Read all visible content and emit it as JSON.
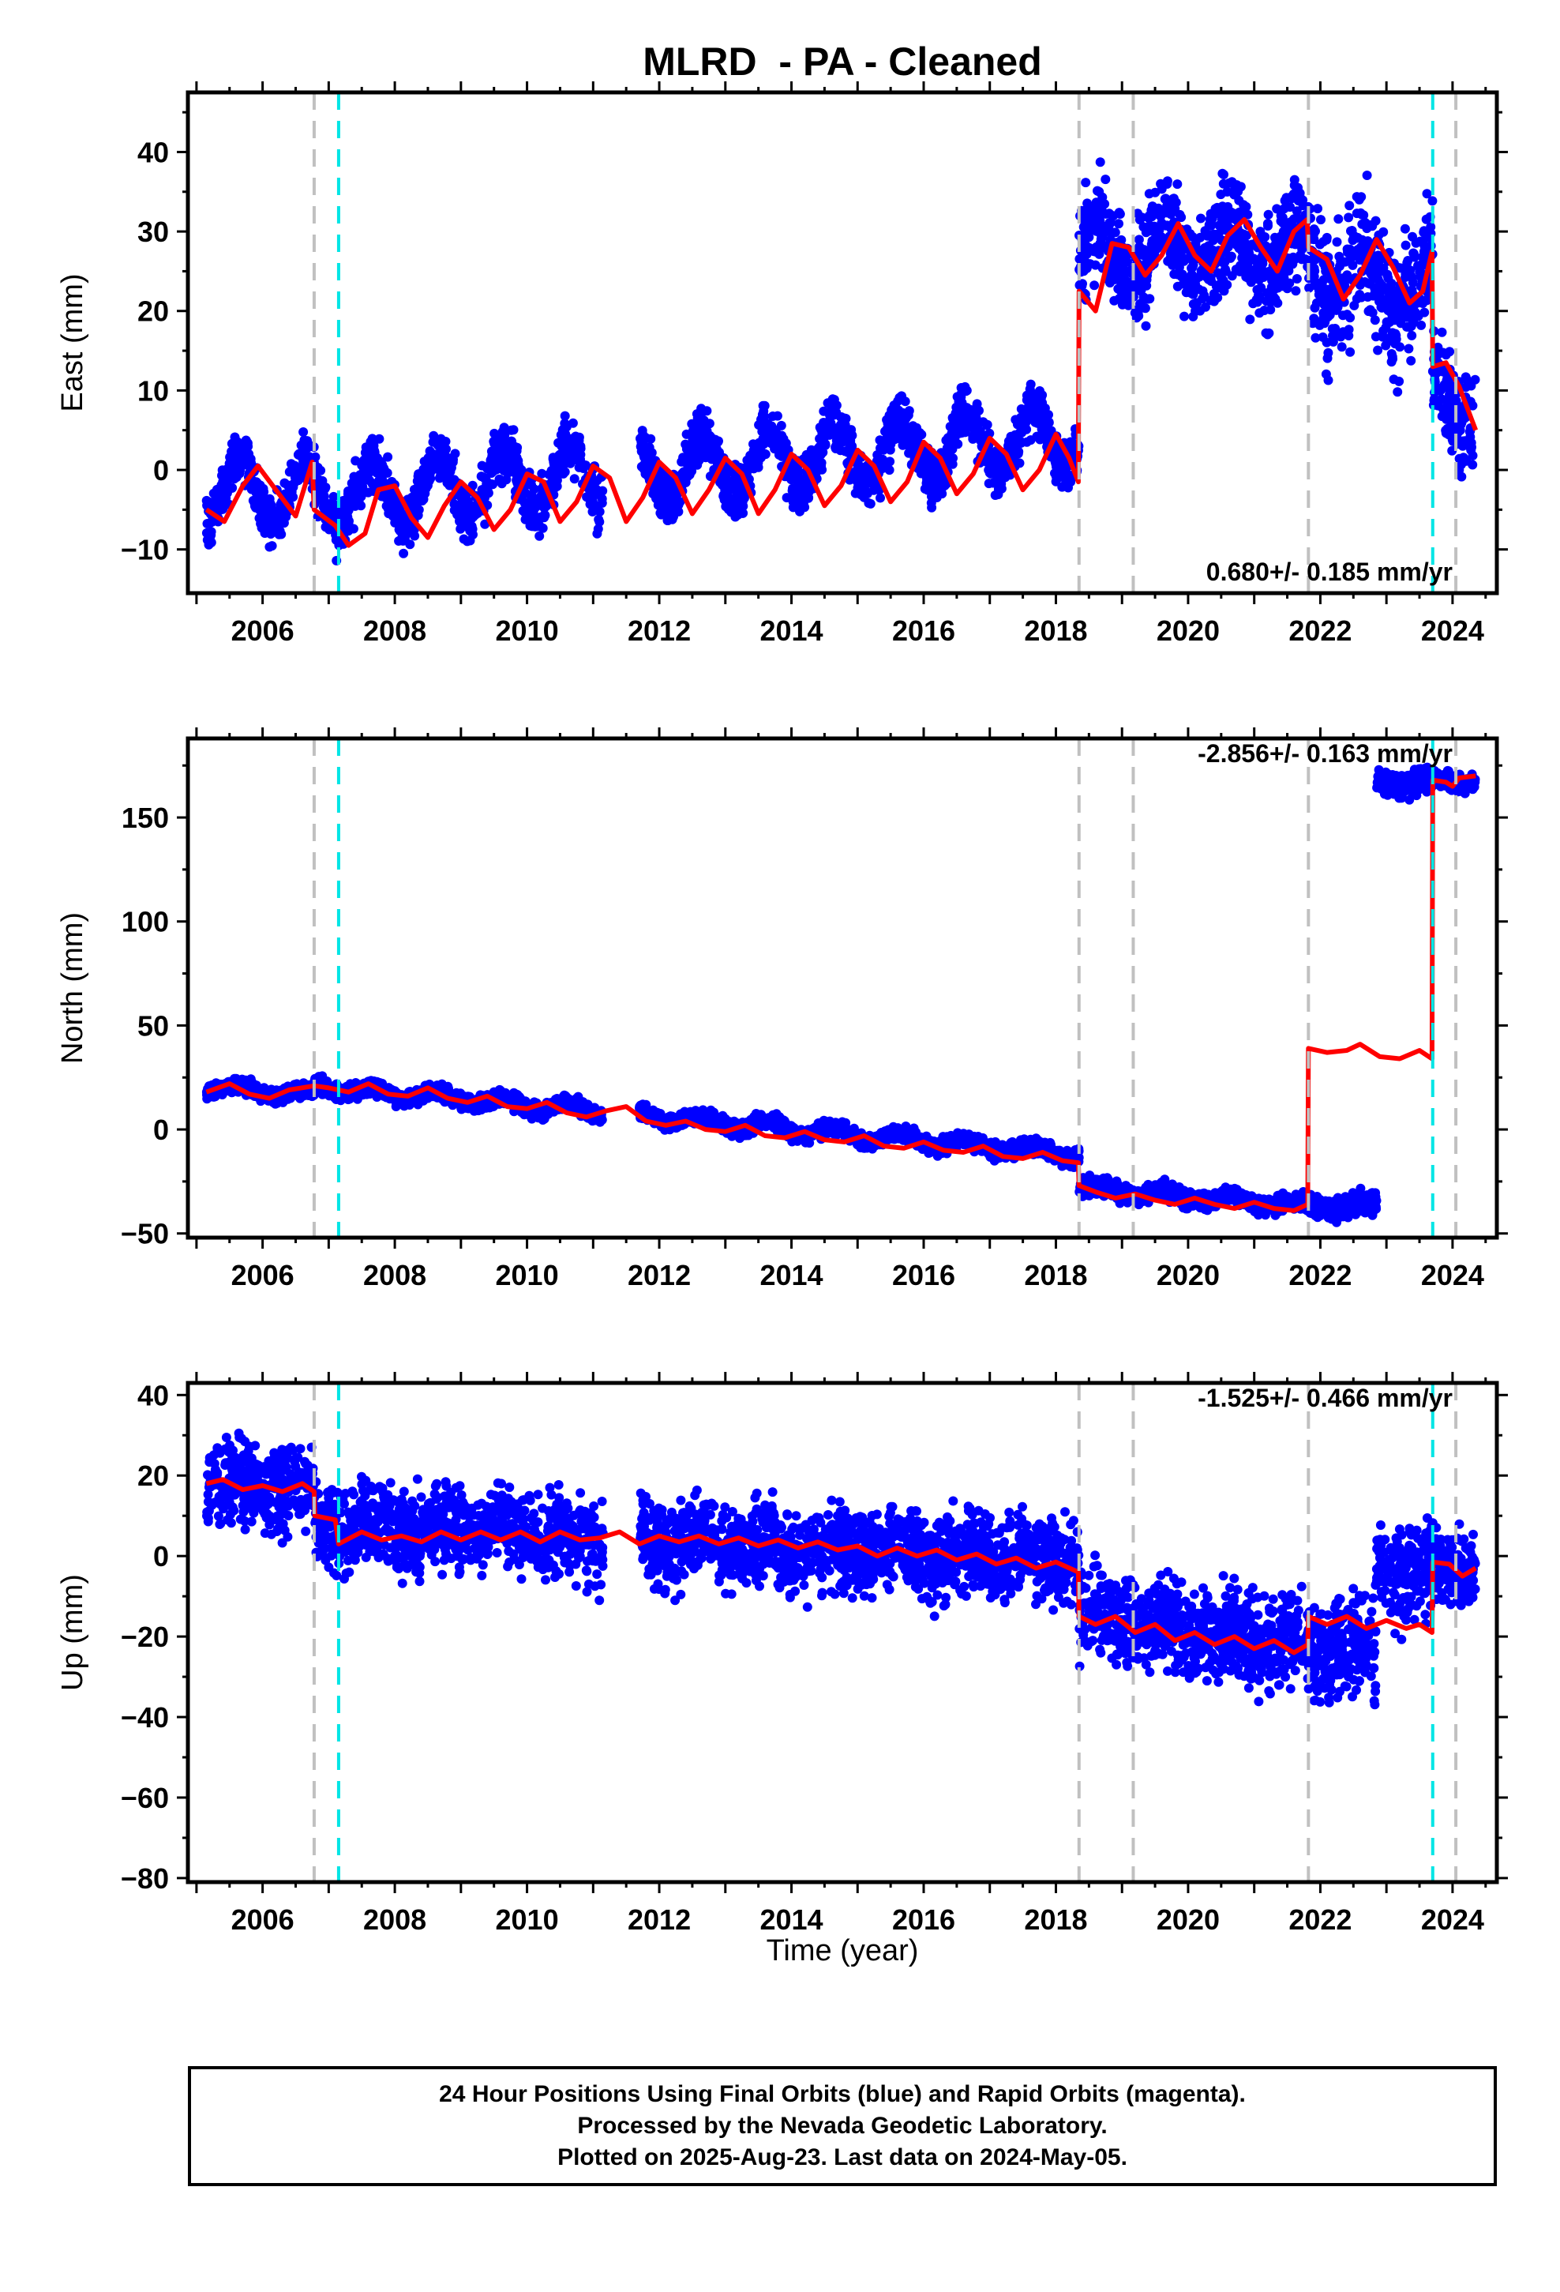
{
  "title": "MLRD  - PA - Cleaned",
  "xlabel": "Time (year)",
  "x_tick_labels": [
    "2006",
    "2008",
    "2010",
    "2012",
    "2014",
    "2016",
    "2018",
    "2020",
    "2022",
    "2024"
  ],
  "caption": {
    "line1": "24 Hour Positions Using Final Orbits (blue) and Rapid Orbits (magenta).",
    "line2": "Processed by the Nevada Geodetic Laboratory.",
    "line3": "Plotted on 2025-Aug-23. Last data on 2024-May-05."
  },
  "colors": {
    "data": "#0000ff",
    "model": "#ff0000",
    "equipment_change": "#c0c0c0",
    "earthquake": "#00e5e5"
  },
  "chart_data": [
    {
      "type": "scatter",
      "ylabel": "East (mm)",
      "rate_label": "0.680+/- 0.185 mm/yr",
      "xlim": [
        2004.87,
        2024.67
      ],
      "ylim": [
        -15.5,
        47.5
      ],
      "yticks": [
        -10,
        0,
        10,
        20,
        30,
        40
      ],
      "ytick_labels": [
        "−10",
        "0",
        "10",
        "20",
        "30",
        "40"
      ],
      "gray_lines_year": [
        2006.78,
        2018.35,
        2019.17,
        2021.82,
        2024.05
      ],
      "cyan_lines_year": [
        2007.15,
        2023.7
      ],
      "segments": [
        {
          "x0": 2005.15,
          "x1": 2006.78,
          "offset": -2.5,
          "amp": 4.0,
          "trend": 0.0,
          "sd": 1.5
        },
        {
          "x0": 2006.78,
          "x1": 2018.35,
          "offset": -3.5,
          "amp": 4.0,
          "trend": 0.68,
          "sd": 1.6
        },
        {
          "x0": 2018.35,
          "x1": 2021.82,
          "offset": 27.5,
          "amp": 3.5,
          "trend": 0.0,
          "sd": 3.0
        },
        {
          "x0": 2021.82,
          "x1": 2023.7,
          "offset": 25.0,
          "amp": 3.5,
          "trend": -1.5,
          "sd": 4.0
        },
        {
          "x0": 2023.7,
          "x1": 2024.35,
          "offset": 10.0,
          "amp": 2.5,
          "trend": -5.0,
          "sd": 3.0
        }
      ],
      "model": [
        [
          2005.15,
          -5.0
        ],
        [
          2005.42,
          -6.5
        ],
        [
          2005.7,
          -2.0
        ],
        [
          2005.93,
          0.5
        ],
        [
          2006.2,
          -2.5
        ],
        [
          2006.5,
          -5.8
        ],
        [
          2006.75,
          1.0
        ],
        [
          2006.78,
          -5.0
        ],
        [
          2007.1,
          -7.0
        ],
        [
          2007.3,
          -9.5
        ],
        [
          2007.55,
          -8.0
        ],
        [
          2007.75,
          -2.5
        ],
        [
          2008.0,
          -2.0
        ],
        [
          2008.25,
          -6.0
        ],
        [
          2008.5,
          -8.5
        ],
        [
          2008.75,
          -4.5
        ],
        [
          2009.0,
          -1.5
        ],
        [
          2009.25,
          -3.5
        ],
        [
          2009.5,
          -7.5
        ],
        [
          2009.75,
          -5.0
        ],
        [
          2010.0,
          -0.5
        ],
        [
          2010.25,
          -1.5
        ],
        [
          2010.5,
          -6.5
        ],
        [
          2010.75,
          -4.0
        ],
        [
          2011.0,
          0.5
        ],
        [
          2011.25,
          -1.0
        ],
        [
          2011.5,
          -6.5
        ],
        [
          2011.75,
          -3.5
        ],
        [
          2012.0,
          1.0
        ],
        [
          2012.25,
          -1.0
        ],
        [
          2012.5,
          -5.5
        ],
        [
          2012.75,
          -2.5
        ],
        [
          2013.0,
          1.5
        ],
        [
          2013.25,
          -0.5
        ],
        [
          2013.5,
          -5.5
        ],
        [
          2013.75,
          -2.5
        ],
        [
          2014.0,
          2.0
        ],
        [
          2014.25,
          0.0
        ],
        [
          2014.5,
          -4.5
        ],
        [
          2014.75,
          -2.0
        ],
        [
          2015.0,
          2.5
        ],
        [
          2015.25,
          0.5
        ],
        [
          2015.5,
          -4.0
        ],
        [
          2015.75,
          -1.5
        ],
        [
          2016.0,
          3.5
        ],
        [
          2016.25,
          1.5
        ],
        [
          2016.5,
          -3.0
        ],
        [
          2016.75,
          -0.5
        ],
        [
          2017.0,
          4.0
        ],
        [
          2017.25,
          2.0
        ],
        [
          2017.5,
          -2.5
        ],
        [
          2017.75,
          0.0
        ],
        [
          2018.0,
          4.5
        ],
        [
          2018.2,
          1.5
        ],
        [
          2018.34,
          -1.5
        ],
        [
          2018.35,
          22.5
        ],
        [
          2018.6,
          20.0
        ],
        [
          2018.85,
          28.5
        ],
        [
          2019.1,
          28.0
        ],
        [
          2019.35,
          24.5
        ],
        [
          2019.6,
          27.0
        ],
        [
          2019.85,
          31.0
        ],
        [
          2020.1,
          27.0
        ],
        [
          2020.35,
          25.0
        ],
        [
          2020.6,
          29.5
        ],
        [
          2020.85,
          31.5
        ],
        [
          2021.1,
          28.0
        ],
        [
          2021.35,
          25.0
        ],
        [
          2021.6,
          30.0
        ],
        [
          2021.8,
          31.5
        ],
        [
          2021.82,
          28.0
        ],
        [
          2022.1,
          26.5
        ],
        [
          2022.35,
          21.5
        ],
        [
          2022.6,
          24.5
        ],
        [
          2022.85,
          29.0
        ],
        [
          2023.1,
          25.5
        ],
        [
          2023.35,
          21.0
        ],
        [
          2023.55,
          22.5
        ],
        [
          2023.69,
          27.5
        ],
        [
          2023.7,
          13.0
        ],
        [
          2023.9,
          13.5
        ],
        [
          2024.1,
          10.5
        ],
        [
          2024.35,
          5.0
        ]
      ],
      "data_end": 2024.35
    },
    {
      "type": "scatter",
      "ylabel": "North (mm)",
      "rate_label": "-2.856+/- 0.163 mm/yr",
      "xlim": [
        2004.87,
        2024.67
      ],
      "ylim": [
        -52,
        188
      ],
      "yticks": [
        -50,
        0,
        50,
        100,
        150
      ],
      "ytick_labels": [
        "−50",
        "0",
        "50",
        "100",
        "150"
      ],
      "gray_lines_year": [
        2006.78,
        2018.35,
        2019.17,
        2021.82,
        2024.05
      ],
      "cyan_lines_year": [
        2007.15,
        2023.7
      ],
      "segments": [
        {
          "x0": 2005.15,
          "x1": 2006.78,
          "offset": 20.0,
          "amp": 2.0,
          "trend": -2.0,
          "sd": 1.8
        },
        {
          "x0": 2006.78,
          "x1": 2018.35,
          "offset": 21.0,
          "amp": 2.5,
          "trend": -2.856,
          "sd": 1.8
        },
        {
          "x0": 2018.35,
          "x1": 2021.82,
          "offset": -28.0,
          "amp": 2.0,
          "trend": -2.5,
          "sd": 2.0
        },
        {
          "x0": 2021.82,
          "x1": 2022.85,
          "offset": -37.0,
          "amp": 2.0,
          "trend": 0.0,
          "sd": 2.5
        },
        {
          "x0": 2022.85,
          "x1": 2023.7,
          "offset": 167.0,
          "amp": 2.5,
          "trend": 0.0,
          "sd": 3.0
        },
        {
          "x0": 2023.7,
          "x1": 2024.35,
          "offset": 168.0,
          "amp": 2.0,
          "trend": 0.0,
          "sd": 2.0
        }
      ],
      "model": [
        [
          2005.15,
          18.0
        ],
        [
          2005.5,
          22.0
        ],
        [
          2005.8,
          17.0
        ],
        [
          2006.1,
          15.0
        ],
        [
          2006.4,
          19.0
        ],
        [
          2006.78,
          21.0
        ],
        [
          2007.0,
          20.0
        ],
        [
          2007.3,
          18.0
        ],
        [
          2007.6,
          22.0
        ],
        [
          2007.9,
          17.0
        ],
        [
          2008.2,
          16.0
        ],
        [
          2008.5,
          20.0
        ],
        [
          2008.8,
          15.0
        ],
        [
          2009.1,
          13.0
        ],
        [
          2009.4,
          16.0
        ],
        [
          2009.7,
          11.0
        ],
        [
          2010.0,
          10.0
        ],
        [
          2010.3,
          13.0
        ],
        [
          2010.6,
          8.0
        ],
        [
          2010.9,
          6.0
        ],
        [
          2011.2,
          9.0
        ],
        [
          2011.5,
          11.0
        ],
        [
          2011.8,
          4.0
        ],
        [
          2012.1,
          2.0
        ],
        [
          2012.4,
          4.0
        ],
        [
          2012.7,
          0.0
        ],
        [
          2013.0,
          -1.0
        ],
        [
          2013.3,
          2.0
        ],
        [
          2013.6,
          -3.0
        ],
        [
          2013.9,
          -4.0
        ],
        [
          2014.2,
          -1.0
        ],
        [
          2014.5,
          -5.0
        ],
        [
          2014.8,
          -6.0
        ],
        [
          2015.1,
          -3.0
        ],
        [
          2015.4,
          -8.0
        ],
        [
          2015.7,
          -9.0
        ],
        [
          2016.0,
          -6.0
        ],
        [
          2016.3,
          -10.0
        ],
        [
          2016.6,
          -11.0
        ],
        [
          2016.9,
          -8.0
        ],
        [
          2017.2,
          -13.0
        ],
        [
          2017.5,
          -14.0
        ],
        [
          2017.8,
          -11.0
        ],
        [
          2018.1,
          -15.0
        ],
        [
          2018.34,
          -16.0
        ],
        [
          2018.35,
          -27.0
        ],
        [
          2018.6,
          -30.0
        ],
        [
          2018.9,
          -33.0
        ],
        [
          2019.2,
          -31.0
        ],
        [
          2019.5,
          -34.0
        ],
        [
          2019.8,
          -36.0
        ],
        [
          2020.1,
          -33.0
        ],
        [
          2020.4,
          -36.0
        ],
        [
          2020.7,
          -38.0
        ],
        [
          2021.0,
          -35.0
        ],
        [
          2021.3,
          -38.0
        ],
        [
          2021.6,
          -39.0
        ],
        [
          2021.81,
          -36.0
        ],
        [
          2021.82,
          39.0
        ],
        [
          2022.1,
          37.0
        ],
        [
          2022.4,
          38.0
        ],
        [
          2022.6,
          41.0
        ],
        [
          2022.9,
          35.0
        ],
        [
          2023.2,
          34.0
        ],
        [
          2023.5,
          38.0
        ],
        [
          2023.69,
          34.0
        ],
        [
          2023.7,
          168.0
        ],
        [
          2023.9,
          167.0
        ],
        [
          2024.0,
          165.0
        ],
        [
          2024.1,
          169.0
        ],
        [
          2024.35,
          170.0
        ]
      ],
      "data_end": 2024.35
    },
    {
      "type": "scatter",
      "ylabel": "Up (mm)",
      "rate_label": "-1.525+/- 0.466 mm/yr",
      "xlim": [
        2004.87,
        2024.67
      ],
      "ylim": [
        -81,
        43
      ],
      "yticks": [
        -80,
        -60,
        -40,
        -20,
        0,
        20,
        40
      ],
      "ytick_labels": [
        "−80",
        "−60",
        "−40",
        "−20",
        "0",
        "20",
        "40"
      ],
      "gray_lines_year": [
        2006.78,
        2018.35,
        2019.17,
        2021.82,
        2024.05
      ],
      "cyan_lines_year": [
        2007.15,
        2023.7
      ],
      "segments": [
        {
          "x0": 2005.15,
          "x1": 2006.78,
          "offset": 18.0,
          "amp": 1.5,
          "trend": -1.0,
          "sd": 5.0
        },
        {
          "x0": 2006.78,
          "x1": 2018.35,
          "offset": 8.0,
          "amp": 1.5,
          "trend": -0.8,
          "sd": 5.0
        },
        {
          "x0": 2018.35,
          "x1": 2021.82,
          "offset": -14.0,
          "amp": 1.5,
          "trend": -2.5,
          "sd": 5.5
        },
        {
          "x0": 2021.82,
          "x1": 2022.85,
          "offset": -23.0,
          "amp": 1.5,
          "trend": 0.0,
          "sd": 6.0
        },
        {
          "x0": 2022.85,
          "x1": 2023.7,
          "offset": -4.0,
          "amp": 1.5,
          "trend": 0.0,
          "sd": 6.0
        },
        {
          "x0": 2023.7,
          "x1": 2024.35,
          "offset": -3.0,
          "amp": 1.5,
          "trend": 0.0,
          "sd": 5.0
        }
      ],
      "model": [
        [
          2005.15,
          18.0
        ],
        [
          2005.4,
          19.0
        ],
        [
          2005.7,
          16.5
        ],
        [
          2006.0,
          17.5
        ],
        [
          2006.3,
          16.0
        ],
        [
          2006.6,
          18.0
        ],
        [
          2006.78,
          16.0
        ],
        [
          2006.79,
          10.0
        ],
        [
          2007.1,
          9.0
        ],
        [
          2007.15,
          3.0
        ],
        [
          2007.5,
          6.0
        ],
        [
          2007.8,
          4.0
        ],
        [
          2008.1,
          5.0
        ],
        [
          2008.4,
          3.5
        ],
        [
          2008.7,
          6.0
        ],
        [
          2009.0,
          4.0
        ],
        [
          2009.3,
          6.0
        ],
        [
          2009.6,
          4.0
        ],
        [
          2009.9,
          6.0
        ],
        [
          2010.2,
          3.5
        ],
        [
          2010.5,
          6.0
        ],
        [
          2010.8,
          4.0
        ],
        [
          2011.1,
          4.5
        ],
        [
          2011.4,
          6.0
        ],
        [
          2011.7,
          3.0
        ],
        [
          2012.0,
          5.0
        ],
        [
          2012.3,
          3.5
        ],
        [
          2012.6,
          5.0
        ],
        [
          2012.9,
          3.0
        ],
        [
          2013.2,
          4.5
        ],
        [
          2013.5,
          2.5
        ],
        [
          2013.8,
          4.0
        ],
        [
          2014.1,
          2.0
        ],
        [
          2014.4,
          3.5
        ],
        [
          2014.7,
          1.5
        ],
        [
          2015.0,
          2.5
        ],
        [
          2015.3,
          0.0
        ],
        [
          2015.6,
          2.0
        ],
        [
          2015.9,
          0.0
        ],
        [
          2016.2,
          1.5
        ],
        [
          2016.5,
          -1.0
        ],
        [
          2016.8,
          0.5
        ],
        [
          2017.1,
          -2.0
        ],
        [
          2017.4,
          -0.5
        ],
        [
          2017.7,
          -3.0
        ],
        [
          2018.0,
          -1.5
        ],
        [
          2018.34,
          -4.0
        ],
        [
          2018.35,
          -15.0
        ],
        [
          2018.6,
          -17.0
        ],
        [
          2018.9,
          -15.0
        ],
        [
          2019.2,
          -19.0
        ],
        [
          2019.5,
          -17.0
        ],
        [
          2019.8,
          -21.0
        ],
        [
          2020.1,
          -19.0
        ],
        [
          2020.4,
          -22.0
        ],
        [
          2020.7,
          -20.0
        ],
        [
          2021.0,
          -23.0
        ],
        [
          2021.3,
          -21.0
        ],
        [
          2021.6,
          -24.0
        ],
        [
          2021.81,
          -22.0
        ],
        [
          2021.82,
          -15.0
        ],
        [
          2022.1,
          -17.0
        ],
        [
          2022.4,
          -15.0
        ],
        [
          2022.7,
          -18.0
        ],
        [
          2023.0,
          -16.0
        ],
        [
          2023.3,
          -18.0
        ],
        [
          2023.5,
          -17.0
        ],
        [
          2023.69,
          -19.0
        ],
        [
          2023.7,
          -1.5
        ],
        [
          2023.95,
          -2.0
        ],
        [
          2024.15,
          -5.0
        ],
        [
          2024.35,
          -3.0
        ]
      ],
      "data_end": 2024.35
    }
  ]
}
